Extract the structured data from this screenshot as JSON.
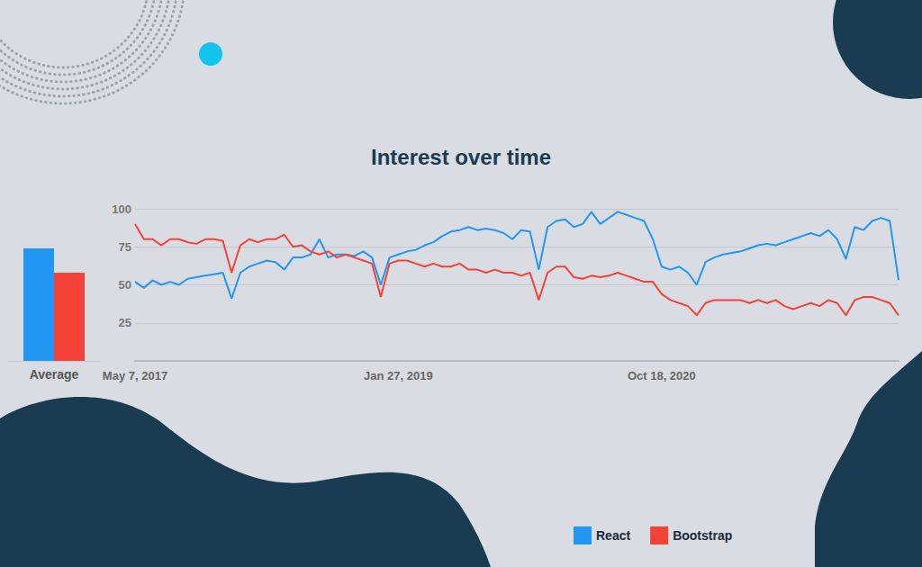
{
  "chart_data": {
    "type": "line",
    "title": "Interest over time",
    "categories": [
      "May 7, 2017",
      null,
      null,
      null,
      null,
      null,
      null,
      null,
      null,
      null,
      null,
      null,
      null,
      null,
      null,
      null,
      null,
      null,
      null,
      null,
      null,
      null,
      null,
      null,
      null,
      null,
      null,
      null,
      null,
      null,
      "Jan 27, 2019",
      null,
      null,
      null,
      null,
      null,
      null,
      null,
      null,
      null,
      null,
      null,
      null,
      null,
      null,
      null,
      null,
      null,
      null,
      null,
      null,
      null,
      null,
      null,
      null,
      null,
      null,
      null,
      null,
      null,
      "Oct 18, 2020",
      null,
      null,
      null,
      null,
      null,
      null,
      null,
      null,
      null,
      null,
      null,
      null,
      null,
      null,
      null,
      null,
      null,
      null,
      null,
      null,
      null,
      null,
      null,
      null,
      null,
      null,
      null
    ],
    "series": [
      {
        "name": "React",
        "color": "#2196f3",
        "average": 74,
        "values": [
          52,
          48,
          53,
          50,
          52,
          50,
          54,
          55,
          56,
          57,
          58,
          41,
          58,
          62,
          64,
          66,
          65,
          60,
          68,
          68,
          70,
          80,
          68,
          70,
          70,
          69,
          72,
          68,
          50,
          68,
          70,
          72,
          73,
          76,
          78,
          82,
          85,
          86,
          88,
          86,
          87,
          86,
          84,
          80,
          86,
          85,
          60,
          88,
          92,
          93,
          88,
          90,
          98,
          90,
          94,
          98,
          96,
          94,
          92,
          80,
          62,
          60,
          62,
          58,
          50,
          65,
          68,
          70,
          71,
          72,
          74,
          76,
          77,
          76,
          78,
          80,
          82,
          84,
          82,
          86,
          80,
          67,
          88,
          86,
          92,
          94,
          92,
          53
        ]
      },
      {
        "name": "Bootstrap",
        "color": "#f44336",
        "average": 58,
        "values": [
          90,
          80,
          80,
          76,
          80,
          80,
          78,
          77,
          80,
          80,
          79,
          58,
          76,
          80,
          78,
          80,
          80,
          83,
          75,
          76,
          72,
          70,
          72,
          68,
          70,
          68,
          66,
          64,
          42,
          64,
          66,
          66,
          64,
          62,
          64,
          62,
          62,
          64,
          60,
          60,
          58,
          60,
          58,
          58,
          56,
          58,
          40,
          58,
          62,
          62,
          55,
          54,
          56,
          55,
          56,
          58,
          56,
          54,
          52,
          52,
          44,
          40,
          38,
          36,
          30,
          38,
          40,
          40,
          40,
          40,
          38,
          40,
          38,
          40,
          36,
          34,
          36,
          38,
          36,
          40,
          38,
          30,
          40,
          42,
          42,
          40,
          38,
          30
        ]
      }
    ],
    "average_label": "Average",
    "ylim": [
      0,
      100
    ],
    "yticks": [
      25,
      50,
      75,
      100
    ],
    "grid": true,
    "legend": "lower right"
  }
}
